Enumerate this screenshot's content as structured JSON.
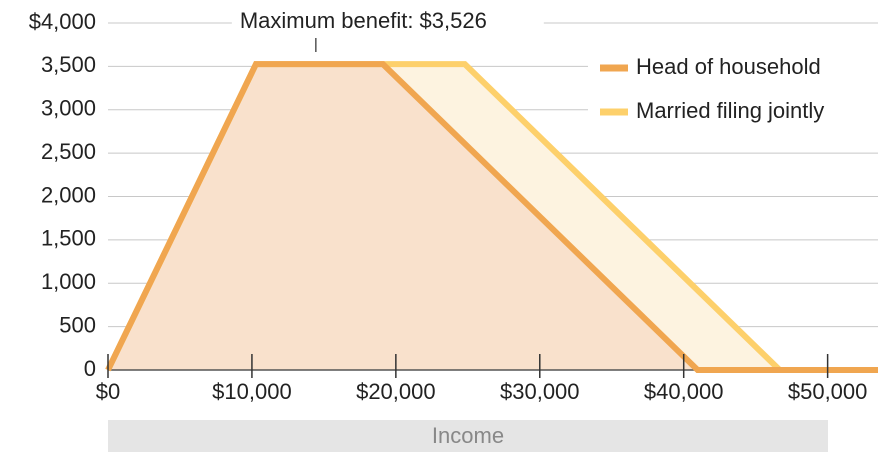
{
  "chart_data": {
    "type": "area",
    "annotation": "Maximum benefit: $3,526",
    "annotation_x": 14440,
    "annotation_y": 3526,
    "xlabel": "Income",
    "xlim": [
      0,
      53500
    ],
    "ylim": [
      0,
      4000
    ],
    "xticks": [
      {
        "value": 0,
        "label": "$0"
      },
      {
        "value": 10000,
        "label": "$10,000"
      },
      {
        "value": 20000,
        "label": "$20,000"
      },
      {
        "value": 30000,
        "label": "$30,000"
      },
      {
        "value": 40000,
        "label": "$40,000"
      },
      {
        "value": 50000,
        "label": "$50,000"
      }
    ],
    "yticks": [
      0,
      500,
      {
        "value": 1000,
        "label": "1,000"
      },
      {
        "value": 1500,
        "label": "1,500"
      },
      {
        "value": 2000,
        "label": "2,000"
      },
      {
        "value": 2500,
        "label": "2,500"
      },
      {
        "value": 3000,
        "label": "3,000"
      },
      {
        "value": 3500,
        "label": "3,500"
      },
      {
        "value": 4000,
        "label": "$4,000"
      }
    ],
    "grid": true,
    "legend": "upper right",
    "series": [
      {
        "name": "Married filing jointly",
        "color": "#fdd06b",
        "fill": "#fdf3e0",
        "x": [
          0,
          10280,
          24790,
          46670,
          53500
        ],
        "values": [
          0,
          3526,
          3526,
          0,
          0
        ]
      },
      {
        "name": "Head of household",
        "color": "#f0a650",
        "fill": "#f9e1cc",
        "x": [
          0,
          10280,
          19100,
          40970,
          53500
        ],
        "values": [
          0,
          3526,
          3526,
          0,
          0
        ]
      }
    ]
  }
}
